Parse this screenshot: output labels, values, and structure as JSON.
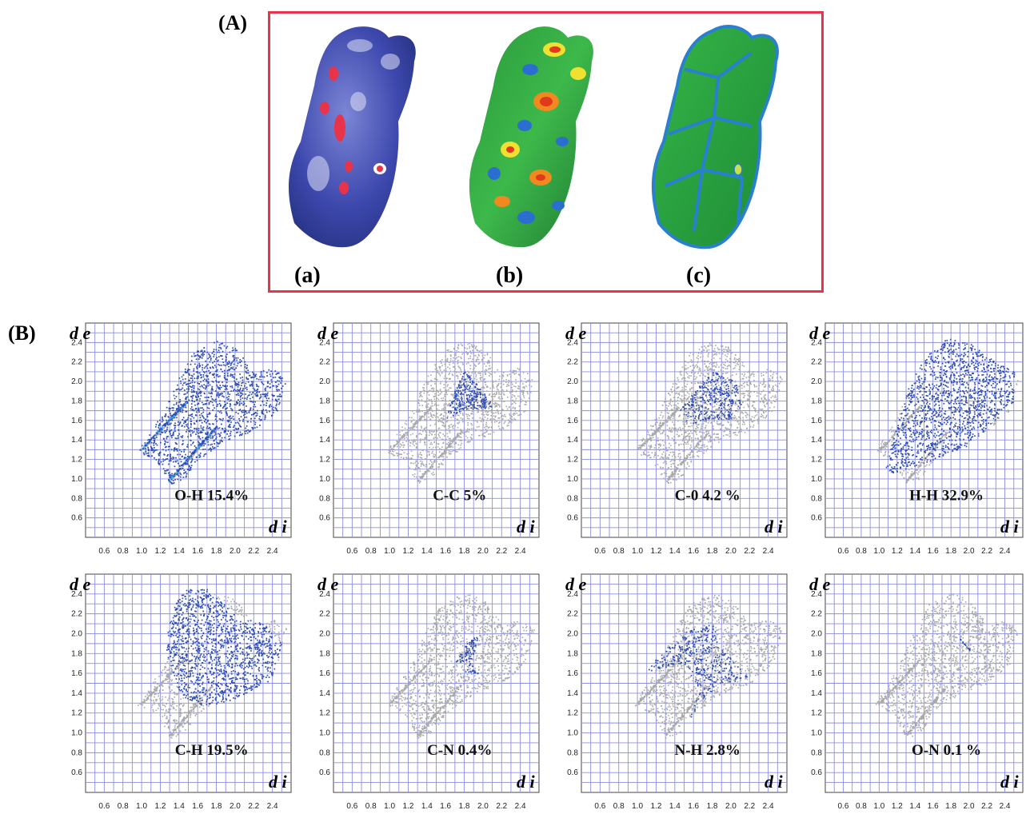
{
  "figure": {
    "panel_a_label": "(A)",
    "panel_b_label": "(B)",
    "surfaces": [
      {
        "label": "(a)",
        "property": "dnorm",
        "colors": [
          "#3a45a8",
          "#e8e8f0",
          "#e02030"
        ]
      },
      {
        "label": "(b)",
        "property": "shape-index",
        "colors": [
          "#1f5fbf",
          "#2bb34a",
          "#f0e030",
          "#e03a1a"
        ]
      },
      {
        "label": "(c)",
        "property": "curvedness",
        "colors": [
          "#2aa83a",
          "#2a7fd0"
        ]
      }
    ],
    "surface_box_color": "#e8344a"
  },
  "chart_data": [
    {
      "type": "scatter",
      "title": "O-H 15.4%",
      "contact": "O-H",
      "percent": 15.4,
      "ylabel": "d e",
      "xlabel": "d i",
      "xlim": [
        0.4,
        2.6
      ],
      "ylim": [
        0.4,
        2.6
      ],
      "x_ticks": [
        "0.6",
        "0.8",
        "1.0",
        "1.2",
        "1.4",
        "1.6",
        "1.8",
        "2.0",
        "2.2",
        "2.4"
      ],
      "y_ticks": [
        "0.6",
        "0.8",
        "1.0",
        "1.2",
        "1.4",
        "1.6",
        "1.8",
        "2.0",
        "2.2",
        "2.4"
      ],
      "grid": true,
      "highlight_color": "#2c4bb8",
      "background_color": "#a8a8a8"
    },
    {
      "type": "scatter",
      "title": "C-C 5%",
      "contact": "C-C",
      "percent": 5,
      "ylabel": "d e",
      "xlabel": "d i",
      "xlim": [
        0.4,
        2.6
      ],
      "ylim": [
        0.4,
        2.6
      ],
      "x_ticks": [
        "0.6",
        "0.8",
        "1.0",
        "1.2",
        "1.4",
        "1.6",
        "1.8",
        "2.0",
        "2.2",
        "2.4"
      ],
      "y_ticks": [
        "0.6",
        "0.8",
        "1.0",
        "1.2",
        "1.4",
        "1.6",
        "1.8",
        "2.0",
        "2.2",
        "2.4"
      ],
      "grid": true,
      "highlight_color": "#2c4bb8",
      "background_color": "#a8a8a8"
    },
    {
      "type": "scatter",
      "title": "C-0 4.2 %",
      "contact": "C-O",
      "percent": 4.2,
      "ylabel": "d e",
      "xlabel": "d i",
      "xlim": [
        0.4,
        2.6
      ],
      "ylim": [
        0.4,
        2.6
      ],
      "x_ticks": [
        "0.6",
        "0.8",
        "1.0",
        "1.2",
        "1.4",
        "1.6",
        "1.8",
        "2.0",
        "2.2",
        "2.4"
      ],
      "y_ticks": [
        "0.6",
        "0.8",
        "1.0",
        "1.2",
        "1.4",
        "1.6",
        "1.8",
        "2.0",
        "2.2",
        "2.4"
      ],
      "grid": true,
      "highlight_color": "#2c4bb8",
      "background_color": "#a8a8a8"
    },
    {
      "type": "scatter",
      "title": "H-H 32.9%",
      "contact": "H-H",
      "percent": 32.9,
      "ylabel": "d e",
      "xlabel": "d i",
      "xlim": [
        0.4,
        2.6
      ],
      "ylim": [
        0.4,
        2.6
      ],
      "x_ticks": [
        "0.6",
        "0.8",
        "1.0",
        "1.2",
        "1.4",
        "1.6",
        "1.8",
        "2.0",
        "2.2",
        "2.4"
      ],
      "y_ticks": [
        "0.6",
        "0.8",
        "1.0",
        "1.2",
        "1.4",
        "1.6",
        "1.8",
        "2.0",
        "2.2",
        "2.4"
      ],
      "grid": true,
      "highlight_color": "#2c4bb8",
      "background_color": "#a8a8a8"
    },
    {
      "type": "scatter",
      "title": "C-H 19.5%",
      "contact": "C-H",
      "percent": 19.5,
      "ylabel": "d e",
      "xlabel": "d i",
      "xlim": [
        0.4,
        2.6
      ],
      "ylim": [
        0.4,
        2.6
      ],
      "x_ticks": [
        "0.6",
        "0.8",
        "1.0",
        "1.2",
        "1.4",
        "1.6",
        "1.8",
        "2.0",
        "2.2",
        "2.4"
      ],
      "y_ticks": [
        "0.6",
        "0.8",
        "1.0",
        "1.2",
        "1.4",
        "1.6",
        "1.8",
        "2.0",
        "2.2",
        "2.4"
      ],
      "grid": true,
      "highlight_color": "#2c4bb8",
      "background_color": "#a8a8a8"
    },
    {
      "type": "scatter",
      "title": "C-N 0.4%",
      "contact": "C-N",
      "percent": 0.4,
      "ylabel": "d e",
      "xlabel": "d i",
      "xlim": [
        0.4,
        2.6
      ],
      "ylim": [
        0.4,
        2.6
      ],
      "x_ticks": [
        "0.6",
        "0.8",
        "1.0",
        "1.2",
        "1.4",
        "1.6",
        "1.8",
        "2.0",
        "2.2",
        "2.4"
      ],
      "y_ticks": [
        "0.6",
        "0.8",
        "1.0",
        "1.2",
        "1.4",
        "1.6",
        "1.8",
        "2.0",
        "2.2",
        "2.4"
      ],
      "grid": true,
      "highlight_color": "#2c4bb8",
      "background_color": "#a8a8a8"
    },
    {
      "type": "scatter",
      "title": "N-H 2.8%",
      "contact": "N-H",
      "percent": 2.8,
      "ylabel": "d e",
      "xlabel": "d i",
      "xlim": [
        0.4,
        2.6
      ],
      "ylim": [
        0.4,
        2.6
      ],
      "x_ticks": [
        "0.6",
        "0.8",
        "1.0",
        "1.2",
        "1.4",
        "1.6",
        "1.8",
        "2.0",
        "2.2",
        "2.4"
      ],
      "y_ticks": [
        "0.6",
        "0.8",
        "1.0",
        "1.2",
        "1.4",
        "1.6",
        "1.8",
        "2.0",
        "2.2",
        "2.4"
      ],
      "grid": true,
      "highlight_color": "#2c4bb8",
      "background_color": "#a8a8a8"
    },
    {
      "type": "scatter",
      "title": "O-N 0.1 %",
      "contact": "O-N",
      "percent": 0.1,
      "ylabel": "d e",
      "xlabel": "d i",
      "xlim": [
        0.4,
        2.6
      ],
      "ylim": [
        0.4,
        2.6
      ],
      "x_ticks": [
        "0.6",
        "0.8",
        "1.0",
        "1.2",
        "1.4",
        "1.6",
        "1.8",
        "2.0",
        "2.2",
        "2.4"
      ],
      "y_ticks": [
        "0.6",
        "0.8",
        "1.0",
        "1.2",
        "1.4",
        "1.6",
        "1.8",
        "2.0",
        "2.2",
        "2.4"
      ],
      "grid": true,
      "highlight_color": "#2c4bb8",
      "background_color": "#a8a8a8"
    }
  ]
}
